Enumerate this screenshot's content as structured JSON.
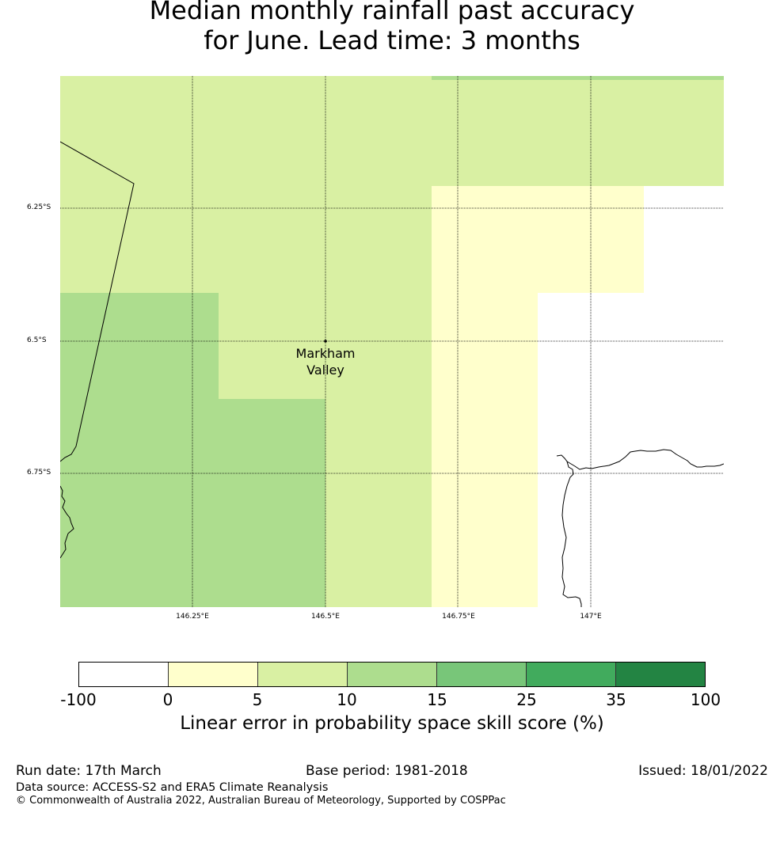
{
  "title": {
    "line1": "Median monthly rainfall past accuracy",
    "line2": "for June. Lead time: 3 months"
  },
  "map": {
    "lat_ticks": [
      "6.25°S",
      "6.5°S",
      "6.75°S"
    ],
    "lon_ticks": [
      "146.25°E",
      "146.5°E",
      "146.75°E",
      "147°E"
    ],
    "place_name_line1": "Markham",
    "place_name_line2": "Valley"
  },
  "colorbar": {
    "tick_labels": [
      "-100",
      "0",
      "5",
      "10",
      "15",
      "25",
      "35",
      "100"
    ],
    "colors": [
      "#ffffff",
      "#ffffcc",
      "#d9f0a3",
      "#addd8e",
      "#78c679",
      "#41ab5d",
      "#238443"
    ],
    "label": "Linear error in probability space skill score (%)"
  },
  "footer": {
    "run_date": "Run date: 17th March",
    "base_period": "Base period: 1981-2018",
    "issued": "Issued: 18/01/2022",
    "data_source": "Data source: ACCESS-S2 and ERA5 Climate Reanalysis",
    "copyright": "© Commonwealth of Australia 2022, Australian Bureau of Meteorology, Supported by COSPPac"
  }
}
